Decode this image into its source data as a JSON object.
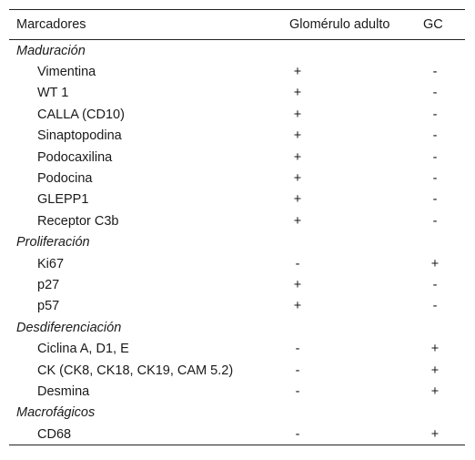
{
  "table": {
    "headers": [
      "Marcadores",
      "Glomérulo adulto",
      "GC"
    ],
    "groups": [
      {
        "title": "Maduración",
        "rows": [
          {
            "marker": "Vimentina",
            "adult": "+",
            "gc": "-"
          },
          {
            "marker": "WT 1",
            "adult": "+",
            "gc": "-"
          },
          {
            "marker": "CALLA (CD10)",
            "adult": "+",
            "gc": "-"
          },
          {
            "marker": "Sinaptopodina",
            "adult": "+",
            "gc": "-"
          },
          {
            "marker": "Podocaxilina",
            "adult": "+",
            "gc": "-"
          },
          {
            "marker": "Podocina",
            "adult": "+",
            "gc": "-"
          },
          {
            "marker": "GLEPP1",
            "adult": "+",
            "gc": "-"
          },
          {
            "marker": "Receptor C3b",
            "adult": "+",
            "gc": "-"
          }
        ]
      },
      {
        "title": "Proliferación",
        "rows": [
          {
            "marker": "Ki67",
            "adult": "-",
            "gc": "+"
          },
          {
            "marker": "p27",
            "adult": "+",
            "gc": "-"
          },
          {
            "marker": "p57",
            "adult": "+",
            "gc": "-"
          }
        ]
      },
      {
        "title": "Desdiferenciación",
        "rows": [
          {
            "marker": "Ciclina A, D1, E",
            "adult": "-",
            "gc": "+"
          },
          {
            "marker": "CK (CK8, CK18, CK19, CAM 5.2)",
            "adult": "-",
            "gc": "+"
          },
          {
            "marker": "Desmina",
            "adult": "-",
            "gc": "+"
          }
        ]
      },
      {
        "title": "Macrofágicos",
        "rows": [
          {
            "marker": "CD68",
            "adult": "-",
            "gc": "+"
          }
        ]
      }
    ]
  }
}
